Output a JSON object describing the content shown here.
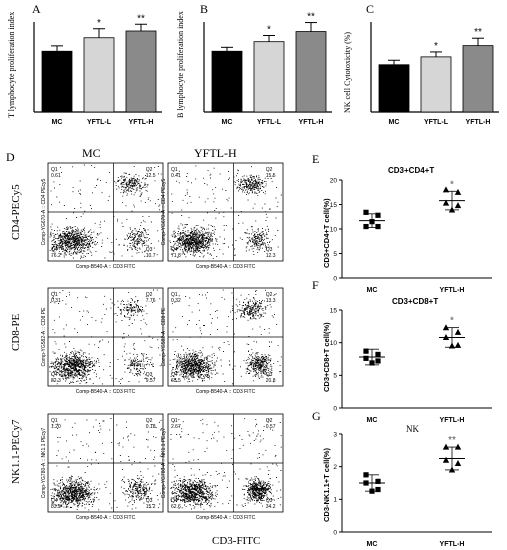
{
  "panels": {
    "A": {
      "letter": "A",
      "ylabel": "T lymphocyte proliferation index"
    },
    "B": {
      "letter": "B",
      "ylabel": "B lymphocyte proliferation index"
    },
    "C": {
      "letter": "C",
      "ylabel": "NK cell Cytotoxicity (%)"
    },
    "D": {
      "letter": "D",
      "col_mc": "MC",
      "col_yftl": "YFTL-H",
      "row1": "CD4-PECy5",
      "row2": "CD8-PE",
      "row3": "NK1.1-PECy7",
      "xaxis": "CD3-FITC"
    },
    "E": {
      "letter": "E",
      "title": "CD3+CD4+T",
      "ylabel": "CD3+CD4+T cell(%)"
    },
    "F": {
      "letter": "F",
      "title": "CD3+CD8+T",
      "ylabel": "CD3+CD8+T cell(%)"
    },
    "G": {
      "letter": "G",
      "title": "NK",
      "ylabel": "CD3-NK1.1+T cell(%)"
    }
  },
  "flow": {
    "x_axis_label": "Comp-B540-A :: CD3 FITC",
    "rows": [
      {
        "y_axis_label": "Comp-YG670-A :: CD4 PEcy5",
        "mc": {
          "Q1": "0.61",
          "Q2": "12.5",
          "Q3": "10.7",
          "Q4": "76.2"
        },
        "yftl": {
          "Q1": "0.41",
          "Q2": "15.5",
          "Q3": "12.3",
          "Q4": "71.8"
        }
      },
      {
        "y_axis_label": "Comp-YG582-A :: CD8 PE",
        "mc": {
          "Q1": "0.31",
          "Q2": "7.76",
          "Q3": "9.57",
          "Q4": "82.3"
        },
        "yftl": {
          "Q1": "0.32",
          "Q2": "13.3",
          "Q3": "20.8",
          "Q4": "65.5"
        }
      },
      {
        "y_axis_label": "Comp-YG780-A :: NK1.1 PEcy7",
        "mc": {
          "Q1": "1.20",
          "Q2": "0.18",
          "Q3": "15.2",
          "Q4": "83.5"
        },
        "yftl": {
          "Q1": "2.67",
          "Q2": "0.57",
          "Q3": "34.2",
          "Q4": "62.6"
        }
      }
    ]
  },
  "chart_data": [
    {
      "id": "A",
      "type": "bar",
      "categories": [
        "MC",
        "YFTL-L",
        "YFTL-H"
      ],
      "values": [
        135,
        165,
        180
      ],
      "errors": [
        12,
        20,
        15
      ],
      "significance": [
        "",
        "*",
        "**"
      ],
      "ylabel": "T lymphocyte proliferation index",
      "ylim": [
        0,
        200
      ],
      "colors": [
        "#000000",
        "#d6d6d6",
        "#8a8a8a"
      ]
    },
    {
      "id": "B",
      "type": "bar",
      "categories": [
        "MC",
        "YFTL-L",
        "YFTL-H"
      ],
      "values": [
        108,
        125,
        143
      ],
      "errors": [
        7,
        11,
        16
      ],
      "significance": [
        "",
        "*",
        "**"
      ],
      "ylabel": "B lymphocyte proliferation index",
      "ylim": [
        0,
        160
      ],
      "colors": [
        "#000000",
        "#d6d6d6",
        "#8a8a8a"
      ]
    },
    {
      "id": "C",
      "type": "bar",
      "categories": [
        "MC",
        "YFTL-L",
        "YFTL-H"
      ],
      "values": [
        21,
        24.5,
        29.5
      ],
      "errors": [
        2,
        2.2,
        3.3
      ],
      "significance": [
        "",
        "*",
        "**"
      ],
      "ylabel": "NK cell Cytotoxicity (%)",
      "ylim": [
        0,
        40
      ],
      "colors": [
        "#000000",
        "#d6d6d6",
        "#8a8a8a"
      ]
    },
    {
      "id": "E",
      "type": "scatter",
      "title": "CD3+CD4+T",
      "categories": [
        "MC",
        "YFTL-H"
      ],
      "series": [
        {
          "name": "MC",
          "marker": "square",
          "values": [
            13.4,
            12.8,
            10.5,
            10.5,
            11.5
          ]
        },
        {
          "name": "YFTL-H",
          "marker": "triangle",
          "values": [
            18.0,
            17.5,
            15.3,
            14.8,
            13.9
          ]
        }
      ],
      "means": [
        11.7,
        15.8
      ],
      "sd": [
        1.4,
        1.9
      ],
      "significance": [
        "",
        "*"
      ],
      "ylabel": "CD3+CD4+T cell(%)",
      "ylim": [
        0,
        20
      ],
      "yticks": [
        0,
        5,
        10,
        15,
        20
      ]
    },
    {
      "id": "F",
      "type": "scatter",
      "title": "CD3+CD8+T",
      "categories": [
        "MC",
        "YFTL-H"
      ],
      "series": [
        {
          "name": "MC",
          "marker": "square",
          "values": [
            8.7,
            8.2,
            7.6,
            7.2,
            6.9
          ]
        },
        {
          "name": "YFTL-H",
          "marker": "triangle",
          "values": [
            12.3,
            11.6,
            10.8,
            9.6,
            9.5
          ]
        }
      ],
      "means": [
        7.8,
        10.8
      ],
      "sd": [
        1.2,
        1.5
      ],
      "significance": [
        "",
        "*"
      ],
      "ylabel": "CD3+CD8+T cell(%)",
      "ylim": [
        0,
        15
      ],
      "yticks": [
        0,
        5,
        10,
        15
      ]
    },
    {
      "id": "G",
      "type": "scatter",
      "title": "NK",
      "categories": [
        "MC",
        "YFTL-H"
      ],
      "series": [
        {
          "name": "MC",
          "marker": "square",
          "values": [
            1.75,
            1.55,
            1.5,
            1.3,
            1.25
          ]
        },
        {
          "name": "YFTL-H",
          "marker": "triangle",
          "values": [
            2.6,
            2.6,
            2.2,
            2.1,
            1.9
          ]
        }
      ],
      "means": [
        1.5,
        2.25
      ],
      "sd": [
        0.25,
        0.35
      ],
      "significance": [
        "",
        "**"
      ],
      "ylabel": "CD3-NK1.1+T cell(%)",
      "ylim": [
        0,
        3
      ],
      "yticks": [
        0,
        1,
        2,
        3
      ]
    }
  ]
}
